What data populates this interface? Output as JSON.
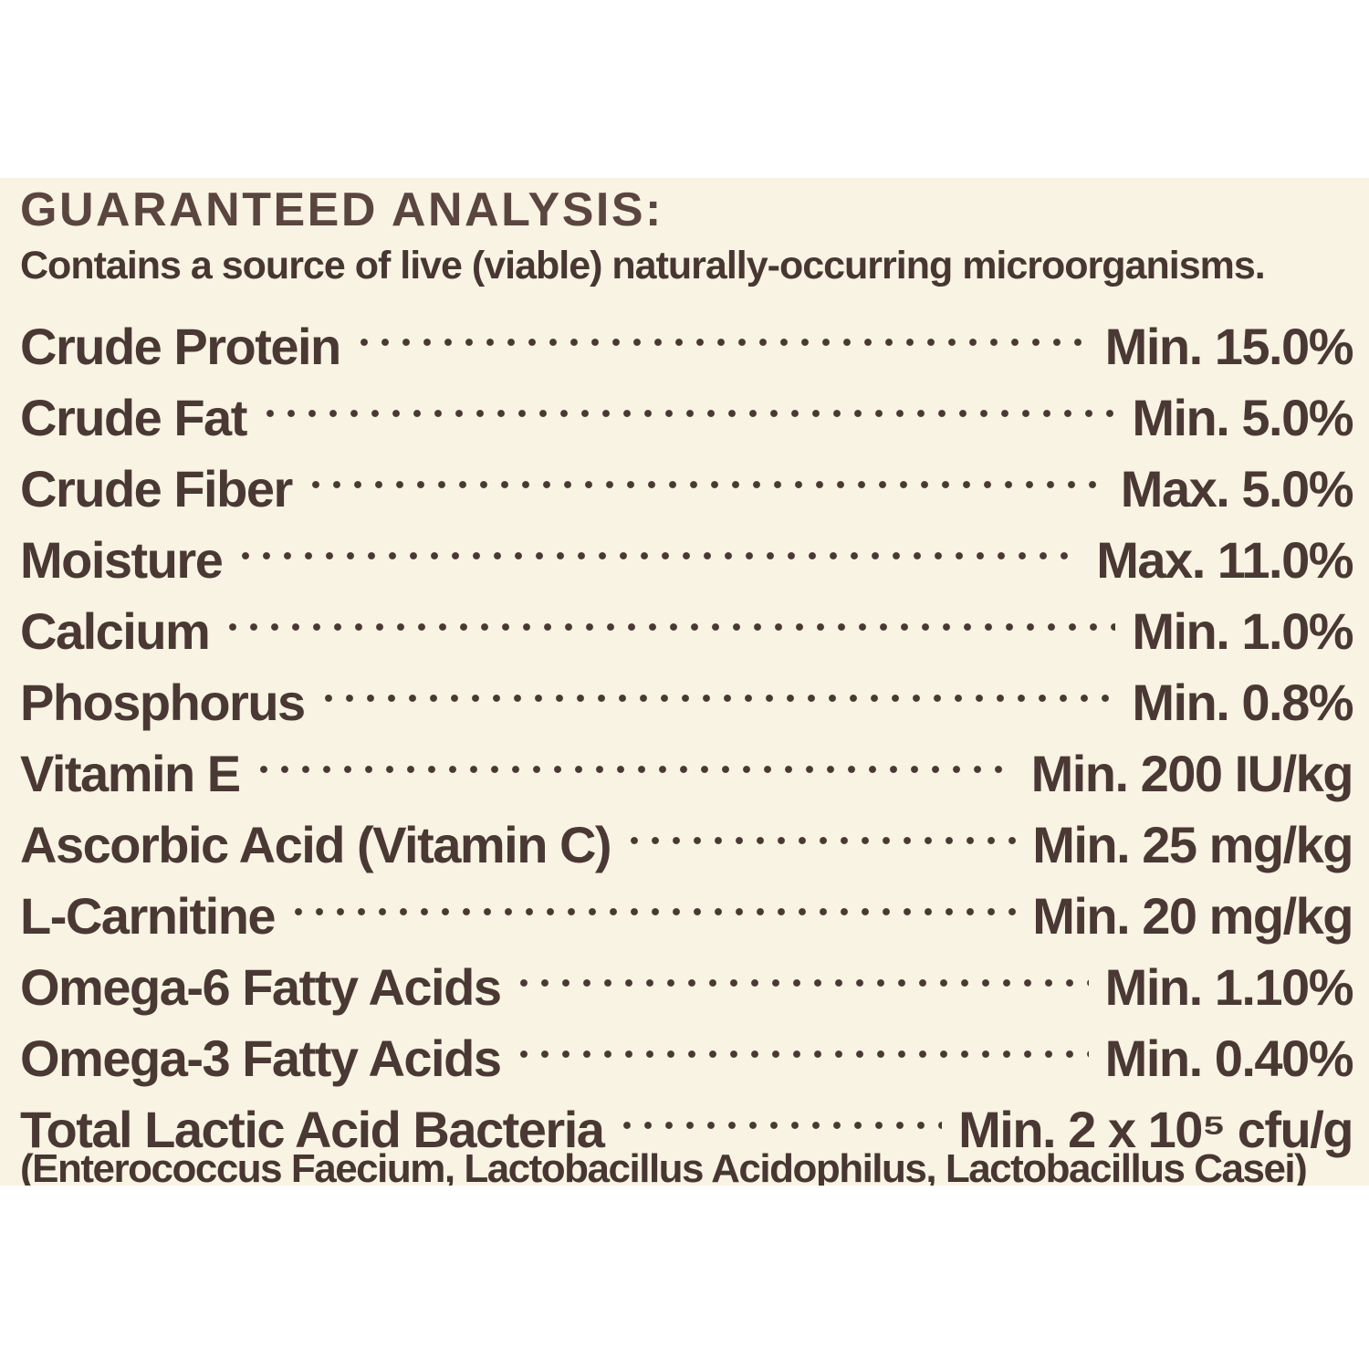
{
  "colors": {
    "page_background": "#ffffff",
    "label_background": "#f8f3e2",
    "text_ink": "#4a3834",
    "heading_ink": "#5a4540"
  },
  "panel": {
    "title": "GUARANTEED ANALYSIS:",
    "subtitle": "Contains a source of live (viable) naturally-occurring microorganisms.",
    "rows": [
      {
        "label": "Crude Protein",
        "value": "Min. 15.0%"
      },
      {
        "label": "Crude Fat",
        "value": "Min. 5.0%"
      },
      {
        "label": "Crude Fiber",
        "value": "Max. 5.0%"
      },
      {
        "label": "Moisture",
        "value": "Max. 11.0%"
      },
      {
        "label": "Calcium",
        "value": "Min. 1.0%"
      },
      {
        "label": "Phosphorus",
        "value": "Min. 0.8%"
      },
      {
        "label": "Vitamin E",
        "value": "Min. 200 IU/kg"
      },
      {
        "label": "Ascorbic Acid (Vitamin C)",
        "value": "Min. 25 mg/kg"
      },
      {
        "label": "L-Carnitine",
        "value": "Min. 20 mg/kg"
      },
      {
        "label": "Omega-6 Fatty Acids",
        "value": "Min. 1.10%"
      },
      {
        "label": "Omega-3 Fatty Acids",
        "value": "Min. 0.40%"
      },
      {
        "label": "Total Lactic Acid Bacteria",
        "value": "Min. 2 x 10⁵ cfu/g"
      }
    ],
    "footnote": "(Enterococcus Faecium, Lactobacillus Acidophilus, Lactobacillus Casei)"
  }
}
